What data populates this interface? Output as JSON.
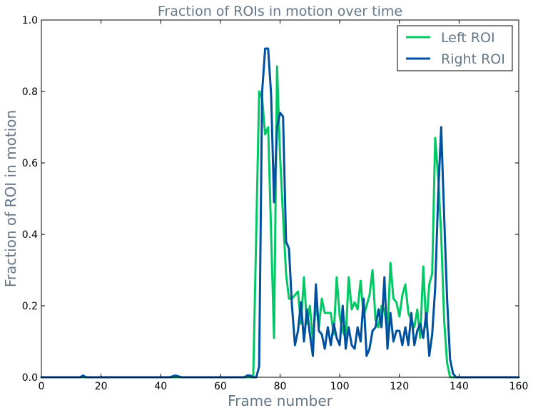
{
  "chart_data": {
    "type": "line",
    "title": "Fraction of ROIs in motion over time",
    "xlabel": "Frame number",
    "ylabel": "Fraction of ROI in motion",
    "xlim": [
      0,
      160
    ],
    "ylim": [
      0,
      1.0
    ],
    "xticks": [
      0,
      20,
      40,
      60,
      80,
      100,
      120,
      140,
      160
    ],
    "xtick_labels": [
      "0",
      "20",
      "40",
      "60",
      "80",
      "100",
      "120",
      "140",
      "160"
    ],
    "yticks": [
      0,
      0.2,
      0.4,
      0.6,
      0.8,
      1.0
    ],
    "ytick_labels": [
      "0.0",
      "0.2",
      "0.4",
      "0.6",
      "0.8",
      "1.0"
    ],
    "grid": false,
    "legend_position": "top-right",
    "text_color": "#667788",
    "series": [
      {
        "name": "Left ROI",
        "color": "#00c864",
        "x": [
          0,
          10,
          20,
          30,
          40,
          50,
          60,
          67,
          68,
          69,
          70,
          71,
          72,
          73,
          74,
          75,
          76,
          77,
          78,
          79,
          80,
          81,
          82,
          83,
          84,
          85,
          86,
          87,
          88,
          89,
          90,
          91,
          92,
          93,
          94,
          95,
          96,
          97,
          98,
          99,
          100,
          101,
          102,
          103,
          104,
          105,
          106,
          107,
          108,
          109,
          110,
          111,
          112,
          113,
          114,
          115,
          116,
          117,
          118,
          119,
          120,
          121,
          122,
          123,
          124,
          125,
          126,
          127,
          128,
          129,
          130,
          131,
          132,
          133,
          134,
          135,
          136,
          137,
          138,
          139,
          140,
          150,
          160
        ],
        "y": [
          0,
          0,
          0,
          0,
          0,
          0,
          0,
          0,
          0,
          0,
          0,
          0,
          0.4,
          0.8,
          0.78,
          0.68,
          0.7,
          0.4,
          0.11,
          0.87,
          0.62,
          0.45,
          0.29,
          0.22,
          0.22,
          0.23,
          0.24,
          0.15,
          0.28,
          0.15,
          0.2,
          0.1,
          0.21,
          0.14,
          0.22,
          0.18,
          0.18,
          0.18,
          0.12,
          0.28,
          0.17,
          0.13,
          0.11,
          0.28,
          0.19,
          0.21,
          0.19,
          0.27,
          0.17,
          0.2,
          0.23,
          0.3,
          0.16,
          0.14,
          0.2,
          0.19,
          0.12,
          0.32,
          0.22,
          0.21,
          0.17,
          0.23,
          0.26,
          0.18,
          0.16,
          0.14,
          0.19,
          0.11,
          0.31,
          0.14,
          0.26,
          0.29,
          0.67,
          0.56,
          0.4,
          0.16,
          0.04,
          0.0,
          0,
          0,
          0,
          0,
          0
        ]
      },
      {
        "name": "Right ROI",
        "color": "#0050a0",
        "x": [
          0,
          10,
          13,
          14,
          15,
          20,
          30,
          40,
          43,
          45,
          47,
          50,
          60,
          68,
          69,
          70,
          71,
          72,
          73,
          74,
          75,
          76,
          77,
          78,
          79,
          80,
          81,
          82,
          83,
          84,
          85,
          86,
          87,
          88,
          89,
          90,
          91,
          92,
          93,
          94,
          95,
          96,
          97,
          98,
          99,
          100,
          101,
          102,
          103,
          104,
          105,
          106,
          107,
          108,
          109,
          110,
          111,
          112,
          113,
          114,
          115,
          116,
          117,
          118,
          119,
          120,
          121,
          122,
          123,
          124,
          125,
          126,
          127,
          128,
          129,
          130,
          131,
          132,
          133,
          134,
          135,
          136,
          137,
          138,
          139,
          140,
          150,
          160
        ],
        "y": [
          0,
          0,
          0,
          0.005,
          0,
          0,
          0,
          0,
          0,
          0.005,
          0,
          0,
          0,
          0,
          0.005,
          0.005,
          0,
          0,
          0.03,
          0.8,
          0.92,
          0.92,
          0.79,
          0.49,
          0.7,
          0.74,
          0.73,
          0.38,
          0.36,
          0.2,
          0.09,
          0.13,
          0.21,
          0.1,
          0.19,
          0.12,
          0.06,
          0.26,
          0.13,
          0.12,
          0.08,
          0.14,
          0.09,
          0.15,
          0.11,
          0.09,
          0.2,
          0.08,
          0.14,
          0.09,
          0.08,
          0.14,
          0.1,
          0.22,
          0.06,
          0.08,
          0.13,
          0.14,
          0.19,
          0.14,
          0.28,
          0.08,
          0.18,
          0.1,
          0.13,
          0.13,
          0.09,
          0.14,
          0.09,
          0.18,
          0.09,
          0.13,
          0.15,
          0.11,
          0.18,
          0.06,
          0.12,
          0.25,
          0.51,
          0.7,
          0.45,
          0.22,
          0.05,
          0.01,
          0,
          0,
          0,
          0
        ]
      }
    ]
  }
}
